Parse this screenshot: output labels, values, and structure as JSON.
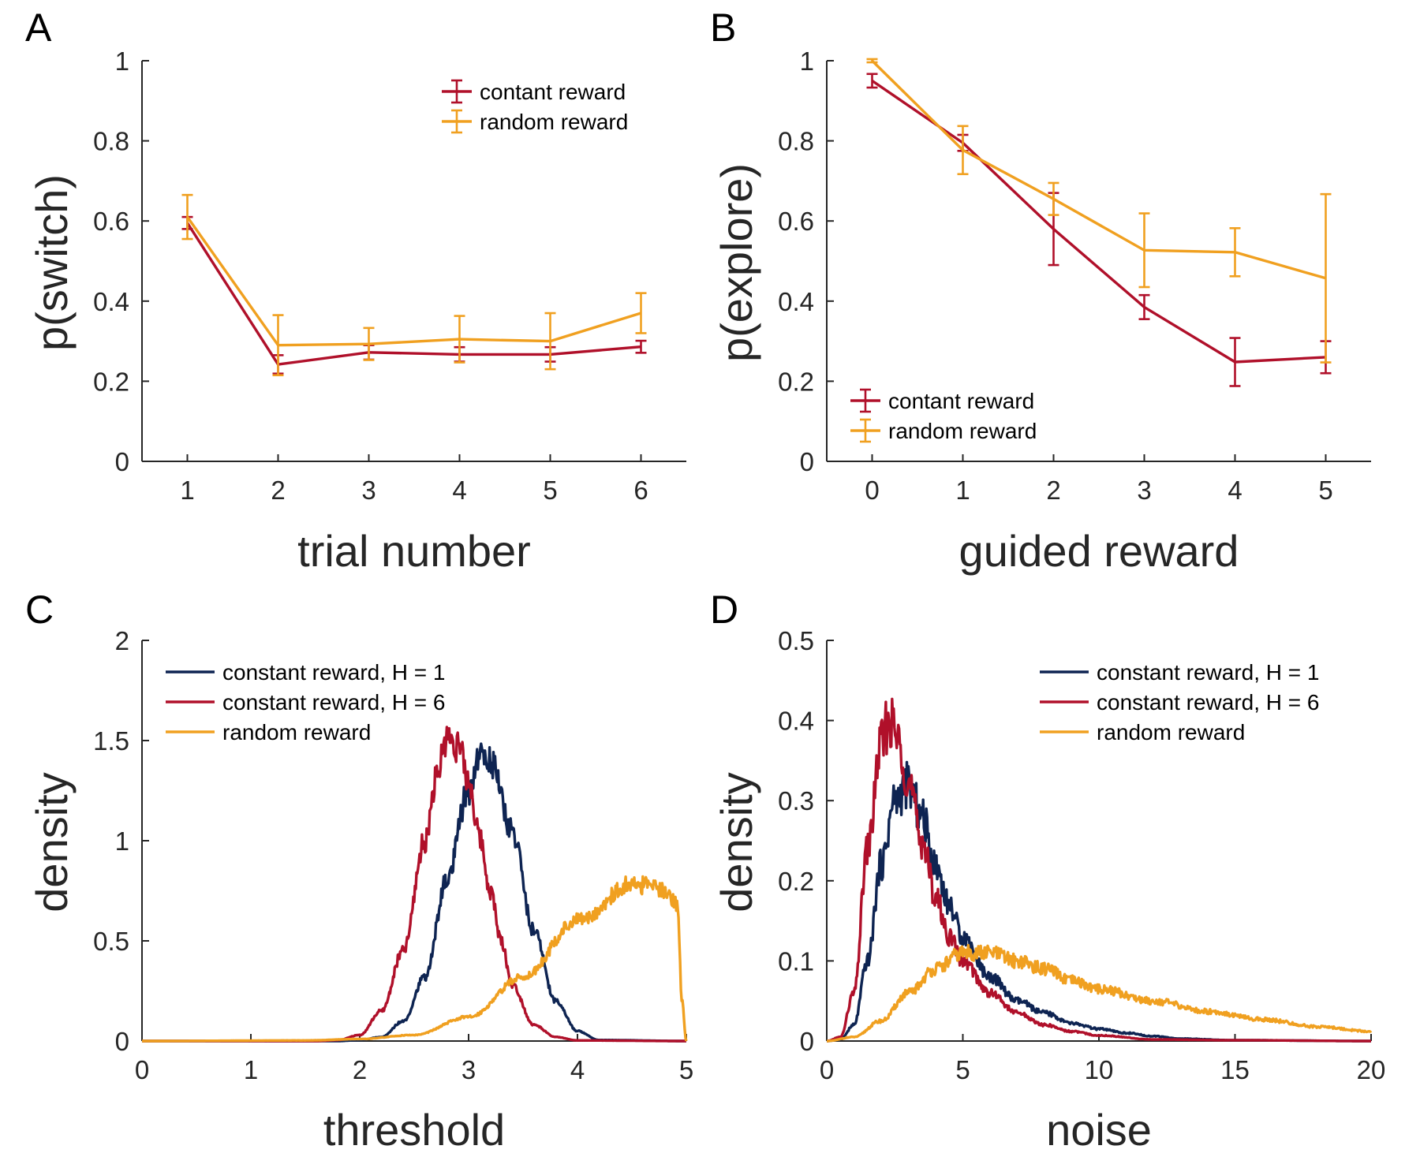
{
  "colors": {
    "constant": "#b0102a",
    "random": "#f0a020",
    "navy": "#0e2452",
    "axis": "#262626"
  },
  "chart_data": [
    {
      "panel": "A",
      "type": "line",
      "xlabel": "trial number",
      "ylabel": "p(switch)",
      "xlim": [
        0.5,
        6.5
      ],
      "ylim": [
        0,
        1
      ],
      "xticks": [
        1,
        2,
        3,
        4,
        5,
        6
      ],
      "yticks": [
        0,
        0.2,
        0.4,
        0.6,
        0.8,
        1
      ],
      "ytick_labels": [
        "0",
        "0.2",
        "0.4",
        "0.6",
        "0.8",
        "1"
      ],
      "legend_position": "top-right",
      "series": [
        {
          "name": "contant reward",
          "color": "#b0102a",
          "x": [
            1,
            2,
            3,
            4,
            5,
            6
          ],
          "y": [
            0.595,
            0.242,
            0.272,
            0.267,
            0.267,
            0.286
          ],
          "err": [
            0.015,
            0.023,
            0.018,
            0.018,
            0.018,
            0.015
          ]
        },
        {
          "name": "random reward",
          "color": "#f0a020",
          "x": [
            1,
            2,
            3,
            4,
            5,
            6
          ],
          "y": [
            0.61,
            0.29,
            0.293,
            0.305,
            0.3,
            0.37
          ],
          "err": [
            0.055,
            0.075,
            0.04,
            0.058,
            0.07,
            0.05
          ]
        }
      ]
    },
    {
      "panel": "B",
      "type": "line",
      "xlabel": "guided reward",
      "ylabel": "p(explore)",
      "xlim": [
        -0.5,
        5.5
      ],
      "ylim": [
        0,
        1
      ],
      "xticks": [
        0,
        1,
        2,
        3,
        4,
        5
      ],
      "yticks": [
        0,
        0.2,
        0.4,
        0.6,
        0.8,
        1
      ],
      "ytick_labels": [
        "0",
        "0.2",
        "0.4",
        "0.6",
        "0.8",
        "1"
      ],
      "legend_position": "bottom-left",
      "series": [
        {
          "name": "contant reward",
          "color": "#b0102a",
          "x": [
            0,
            1,
            2,
            3,
            4,
            5
          ],
          "y": [
            0.95,
            0.795,
            0.58,
            0.385,
            0.248,
            0.26
          ],
          "err": [
            0.017,
            0.02,
            0.09,
            0.03,
            0.06,
            0.04
          ]
        },
        {
          "name": "random reward",
          "color": "#f0a020",
          "x": [
            0,
            1,
            2,
            3,
            4,
            5
          ],
          "y": [
            1.0,
            0.777,
            0.655,
            0.527,
            0.522,
            0.457
          ],
          "err": [
            0.004,
            0.06,
            0.04,
            0.092,
            0.06,
            0.21
          ]
        }
      ]
    },
    {
      "panel": "C",
      "type": "line",
      "xlabel": "threshold",
      "ylabel": "density",
      "xlim": [
        0,
        5
      ],
      "ylim": [
        0,
        2
      ],
      "xticks": [
        0,
        1,
        2,
        3,
        4,
        5
      ],
      "yticks": [
        0,
        0.5,
        1,
        1.5,
        2
      ],
      "ytick_labels": [
        "0",
        "0.5",
        "1",
        "1.5",
        "2"
      ],
      "legend_position": "top-left",
      "series": [
        {
          "name": "constant reward, H = 1",
          "color": "#0e2452",
          "x": [
            0,
            1.8,
            2.0,
            2.2,
            2.4,
            2.6,
            2.8,
            3.0,
            3.1,
            3.2,
            3.4,
            3.6,
            3.8,
            4.0,
            4.2,
            5.0
          ],
          "y": [
            0,
            0,
            0.005,
            0.02,
            0.1,
            0.32,
            0.8,
            1.25,
            1.43,
            1.4,
            1.05,
            0.55,
            0.2,
            0.05,
            0.005,
            0
          ]
        },
        {
          "name": "constant reward, H = 6",
          "color": "#b0102a",
          "x": [
            0,
            1.6,
            1.8,
            2.0,
            2.2,
            2.4,
            2.6,
            2.7,
            2.8,
            2.9,
            3.0,
            3.1,
            3.2,
            3.3,
            3.4,
            3.6,
            3.8,
            4.0,
            5.0
          ],
          "y": [
            0,
            0,
            0.005,
            0.03,
            0.15,
            0.45,
            1.0,
            1.3,
            1.52,
            1.48,
            1.3,
            1.02,
            0.75,
            0.5,
            0.28,
            0.08,
            0.02,
            0.003,
            0
          ]
        },
        {
          "name": "random reward",
          "color": "#f0a020",
          "x": [
            0,
            1.5,
            2.0,
            2.5,
            3.0,
            3.5,
            4.0,
            4.5,
            4.8,
            4.92,
            4.96,
            5.0
          ],
          "y": [
            0,
            0.003,
            0.01,
            0.03,
            0.12,
            0.32,
            0.6,
            0.78,
            0.76,
            0.68,
            0.2,
            0
          ]
        }
      ]
    },
    {
      "panel": "D",
      "type": "line",
      "xlabel": "noise",
      "ylabel": "density",
      "xlim": [
        0,
        20
      ],
      "ylim": [
        0,
        0.5
      ],
      "xticks": [
        0,
        5,
        10,
        15,
        20
      ],
      "yticks": [
        0,
        0.1,
        0.2,
        0.3,
        0.4,
        0.5
      ],
      "ytick_labels": [
        "0",
        "0.1",
        "0.2",
        "0.3",
        "0.4",
        "0.5"
      ],
      "legend_position": "top-right",
      "series": [
        {
          "name": "constant reward, H = 1",
          "color": "#0e2452",
          "x": [
            0,
            0.5,
            1,
            1.5,
            2,
            2.5,
            3,
            3.5,
            4,
            4.5,
            5,
            6,
            7,
            8,
            9,
            10,
            11,
            12,
            13,
            15,
            20
          ],
          "y": [
            0,
            0.002,
            0.02,
            0.1,
            0.22,
            0.3,
            0.32,
            0.28,
            0.22,
            0.17,
            0.13,
            0.08,
            0.05,
            0.035,
            0.022,
            0.015,
            0.01,
            0.006,
            0.003,
            0.001,
            0
          ]
        },
        {
          "name": "constant reward, H = 6",
          "color": "#b0102a",
          "x": [
            0,
            0.5,
            1,
            1.5,
            2,
            2.3,
            2.7,
            3,
            3.5,
            4,
            4.5,
            5,
            6,
            7,
            8,
            9,
            10,
            12,
            15,
            20
          ],
          "y": [
            0,
            0.005,
            0.06,
            0.24,
            0.37,
            0.4,
            0.37,
            0.32,
            0.25,
            0.18,
            0.13,
            0.1,
            0.06,
            0.035,
            0.02,
            0.012,
            0.007,
            0.002,
            0.001,
            0
          ]
        },
        {
          "name": "random reward",
          "color": "#f0a020",
          "x": [
            0,
            1,
            2,
            3,
            4,
            5,
            6,
            7,
            8,
            9,
            10,
            12,
            14,
            16,
            18,
            20
          ],
          "y": [
            0,
            0.005,
            0.025,
            0.06,
            0.09,
            0.11,
            0.11,
            0.1,
            0.09,
            0.075,
            0.065,
            0.05,
            0.037,
            0.027,
            0.018,
            0.012
          ]
        }
      ]
    }
  ]
}
